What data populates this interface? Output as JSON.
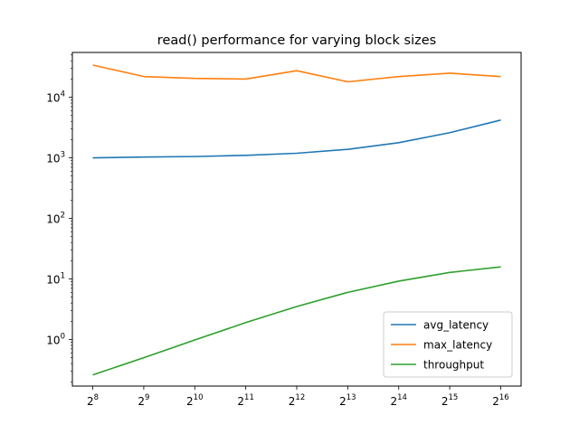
{
  "chart_data": {
    "type": "line",
    "title": "read() performance for varying block sizes",
    "xscale": "log2",
    "yscale": "log10",
    "x": [
      256,
      512,
      1024,
      2048,
      4096,
      8192,
      16384,
      32768,
      65536
    ],
    "x_tick_labels": [
      {
        "base": "2",
        "exp": "8"
      },
      {
        "base": "2",
        "exp": "9"
      },
      {
        "base": "2",
        "exp": "10"
      },
      {
        "base": "2",
        "exp": "11"
      },
      {
        "base": "2",
        "exp": "12"
      },
      {
        "base": "2",
        "exp": "13"
      },
      {
        "base": "2",
        "exp": "14"
      },
      {
        "base": "2",
        "exp": "15"
      },
      {
        "base": "2",
        "exp": "16"
      }
    ],
    "y_tick_labels": [
      {
        "value": 1,
        "base": "10",
        "exp": "0"
      },
      {
        "value": 10,
        "base": "10",
        "exp": "1"
      },
      {
        "value": 100,
        "base": "10",
        "exp": "2"
      },
      {
        "value": 1000,
        "base": "10",
        "exp": "3"
      },
      {
        "value": 10000,
        "base": "10",
        "exp": "4"
      }
    ],
    "ylim": [
      0.17,
      55000
    ],
    "grid": false,
    "legend_position": "lower-right",
    "series": [
      {
        "name": "avg_latency",
        "color": "#1f77b4",
        "values": [
          1000,
          1030,
          1050,
          1100,
          1190,
          1380,
          1780,
          2600,
          4200
        ]
      },
      {
        "name": "max_latency",
        "color": "#ff7f0e",
        "values": [
          34000,
          22000,
          20500,
          20000,
          27500,
          18000,
          22000,
          25000,
          22000
        ]
      },
      {
        "name": "throughput",
        "color": "#2ca02c",
        "values": [
          0.26,
          0.5,
          0.98,
          1.9,
          3.5,
          6.0,
          9.2,
          12.8,
          15.8
        ]
      }
    ]
  }
}
